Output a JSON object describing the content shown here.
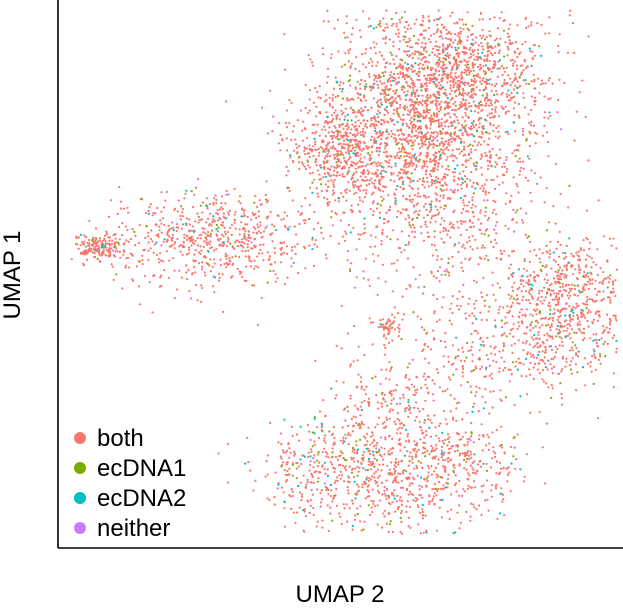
{
  "chart_data": {
    "type": "scatter",
    "title": "",
    "xlabel": "UMAP 2",
    "ylabel": "UMAP 1",
    "grid": false,
    "legend_position": "bottom-left inside",
    "legend": [
      {
        "name": "both",
        "color": "#F8766D"
      },
      {
        "name": "ecDNA1",
        "color": "#7CAE00"
      },
      {
        "name": "ecDNA2",
        "color": "#00BFC4"
      },
      {
        "name": "neither",
        "color": "#C77CFF"
      }
    ],
    "xlim": [
      0,
      1
    ],
    "ylim": [
      0,
      1
    ],
    "clusters": [
      {
        "name": "top-right large",
        "center": [
          0.66,
          0.76
        ],
        "spread": [
          0.09,
          0.13
        ],
        "share": 0.34
      },
      {
        "name": "top-right upper",
        "center": [
          0.72,
          0.87
        ],
        "spread": [
          0.08,
          0.06
        ],
        "share": 0.1
      },
      {
        "name": "left arm",
        "center": [
          0.27,
          0.57
        ],
        "spread": [
          0.09,
          0.045
        ],
        "share": 0.1
      },
      {
        "name": "left tip",
        "center": [
          0.07,
          0.55
        ],
        "spread": [
          0.025,
          0.012
        ],
        "share": 0.025
      },
      {
        "name": "upper-left lobe",
        "center": [
          0.5,
          0.74
        ],
        "spread": [
          0.05,
          0.05
        ],
        "share": 0.07
      },
      {
        "name": "right middle",
        "center": [
          0.9,
          0.44
        ],
        "spread": [
          0.06,
          0.07
        ],
        "share": 0.12
      },
      {
        "name": "bottom center",
        "center": [
          0.6,
          0.16
        ],
        "spread": [
          0.06,
          0.1
        ],
        "share": 0.11
      },
      {
        "name": "bottom left",
        "center": [
          0.47,
          0.14
        ],
        "spread": [
          0.06,
          0.05
        ],
        "share": 0.05
      },
      {
        "name": "bottom right",
        "center": [
          0.74,
          0.15
        ],
        "spread": [
          0.05,
          0.04
        ],
        "share": 0.03
      },
      {
        "name": "small center",
        "center": [
          0.59,
          0.4
        ],
        "spread": [
          0.012,
          0.012
        ],
        "share": 0.008
      },
      {
        "name": "bridge",
        "center": [
          0.74,
          0.35
        ],
        "spread": [
          0.06,
          0.06
        ],
        "share": 0.03
      }
    ],
    "point_count": 6500,
    "category_mix": {
      "both": 0.9,
      "ecDNA1": 0.05,
      "ecDNA2": 0.045,
      "neither": 0.005
    }
  }
}
